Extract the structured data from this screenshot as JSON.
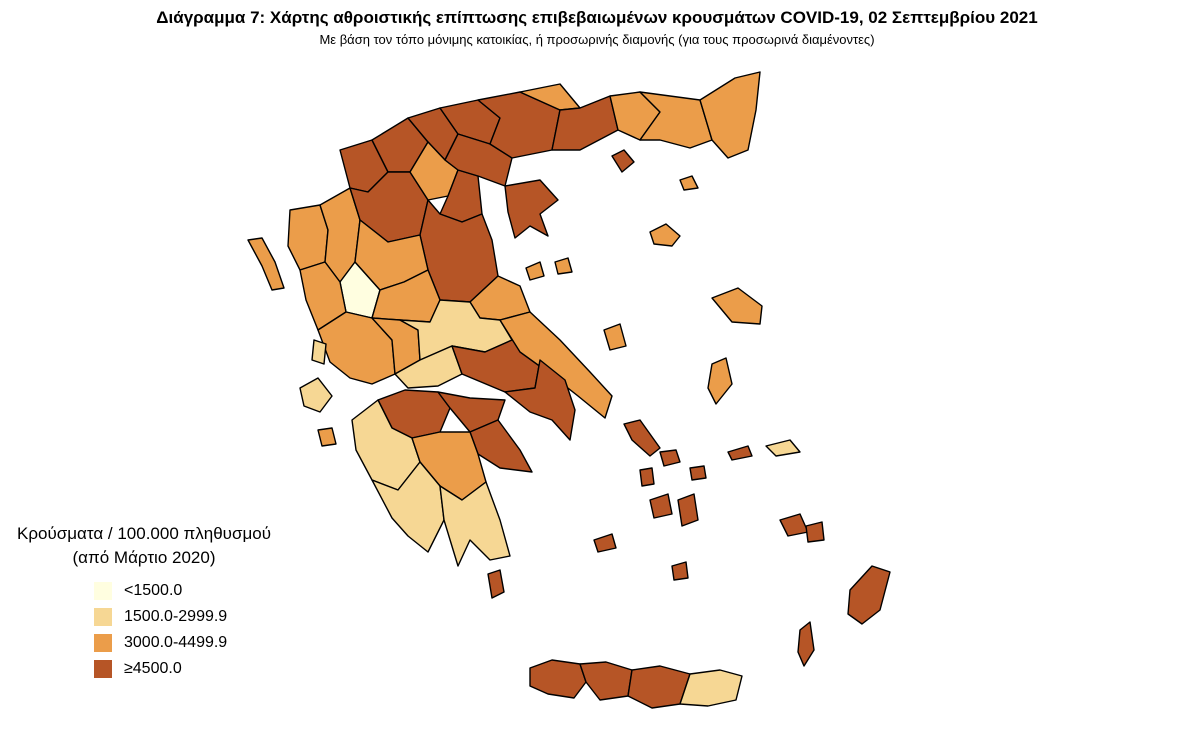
{
  "header": {
    "title": "Διάγραμμα 7: Χάρτης αθροιστικής επίπτωσης επιβεβαιωμένων κρουσμάτων COVID-19, 02 Σεπτεμβρίου 2021",
    "subtitle": "Με βάση τον τόπο μόνιμης κατοικίας, ή προσωρινής διαμονής (για τους προσωρινά διαμένοντες)"
  },
  "legend": {
    "title_line1": "Κρούσματα / 100.000 πληθυσμού",
    "title_line2": "(από Μάρτιο 2020)",
    "classes": [
      {
        "label": "<1500.0",
        "color": "#FFFEE0"
      },
      {
        "label": "1500.0-2999.9",
        "color": "#F6D794"
      },
      {
        "label": "3000.0-4499.9",
        "color": "#EB9D4A"
      },
      {
        "label": "≥4500.0",
        "color": "#B65526"
      }
    ]
  },
  "map": {
    "regions": [
      {
        "name": "region-thesprotia",
        "class": 3
      },
      {
        "name": "region-ioannina",
        "class": 3
      },
      {
        "name": "region-kastoria",
        "class": 4
      },
      {
        "name": "region-florina",
        "class": 4
      },
      {
        "name": "region-pella",
        "class": 4
      },
      {
        "name": "region-kilkis",
        "class": 4
      },
      {
        "name": "region-serres",
        "class": 4
      },
      {
        "name": "region-drama",
        "class": 3
      },
      {
        "name": "region-kavala",
        "class": 4
      },
      {
        "name": "region-xanthi",
        "class": 3
      },
      {
        "name": "region-rodopi",
        "class": 3
      },
      {
        "name": "region-evros",
        "class": 3
      },
      {
        "name": "region-thessaloniki",
        "class": 4
      },
      {
        "name": "region-chalkidiki",
        "class": 4
      },
      {
        "name": "region-kozani",
        "class": 4
      },
      {
        "name": "region-imathia",
        "class": 3
      },
      {
        "name": "region-pieria",
        "class": 4
      },
      {
        "name": "region-larisa",
        "class": 4
      },
      {
        "name": "region-trikala",
        "class": 3
      },
      {
        "name": "region-arta",
        "class": 1
      },
      {
        "name": "region-preveza",
        "class": 3
      },
      {
        "name": "region-karditsa",
        "class": 3
      },
      {
        "name": "region-magnisia",
        "class": 3
      },
      {
        "name": "region-aitoloakarnania",
        "class": 3
      },
      {
        "name": "region-evrytania",
        "class": 3
      },
      {
        "name": "region-fthiotida",
        "class": 2
      },
      {
        "name": "region-fokida",
        "class": 2
      },
      {
        "name": "region-viotia",
        "class": 4
      },
      {
        "name": "region-evia",
        "class": 3
      },
      {
        "name": "region-attiki",
        "class": 4
      },
      {
        "name": "region-achaia",
        "class": 4
      },
      {
        "name": "region-ilia",
        "class": 2
      },
      {
        "name": "region-korinthia",
        "class": 4
      },
      {
        "name": "region-argolida",
        "class": 4
      },
      {
        "name": "region-arkadia",
        "class": 3
      },
      {
        "name": "region-messinia",
        "class": 2
      },
      {
        "name": "region-lakonia",
        "class": 2
      },
      {
        "name": "region-kerkyra",
        "class": 3
      },
      {
        "name": "region-lefkada",
        "class": 2
      },
      {
        "name": "region-kefalonia",
        "class": 2
      },
      {
        "name": "region-zakynthos",
        "class": 3
      },
      {
        "name": "region-kythira",
        "class": 4
      },
      {
        "name": "region-thasos",
        "class": 4
      },
      {
        "name": "region-samothraki",
        "class": 3
      },
      {
        "name": "region-limnos",
        "class": 3
      },
      {
        "name": "region-lesvos",
        "class": 3
      },
      {
        "name": "region-chios",
        "class": 3
      },
      {
        "name": "region-samos",
        "class": 2
      },
      {
        "name": "region-ikaria",
        "class": 4
      },
      {
        "name": "region-skiathos",
        "class": 3
      },
      {
        "name": "region-skopelos",
        "class": 3
      },
      {
        "name": "region-skyros",
        "class": 3
      },
      {
        "name": "region-andros",
        "class": 4
      },
      {
        "name": "region-tinos",
        "class": 4
      },
      {
        "name": "region-mykonos",
        "class": 4
      },
      {
        "name": "region-syros",
        "class": 4
      },
      {
        "name": "region-paros",
        "class": 4
      },
      {
        "name": "region-naxos",
        "class": 4
      },
      {
        "name": "region-milos",
        "class": 4
      },
      {
        "name": "region-santorini",
        "class": 4
      },
      {
        "name": "region-kos",
        "class": 4
      },
      {
        "name": "region-kalymnos",
        "class": 4
      },
      {
        "name": "region-rodos",
        "class": 4
      },
      {
        "name": "region-karpathos",
        "class": 4
      },
      {
        "name": "region-chania",
        "class": 4
      },
      {
        "name": "region-rethymno",
        "class": 4
      },
      {
        "name": "region-irakleio",
        "class": 4
      },
      {
        "name": "region-lasithi",
        "class": 2
      }
    ]
  }
}
